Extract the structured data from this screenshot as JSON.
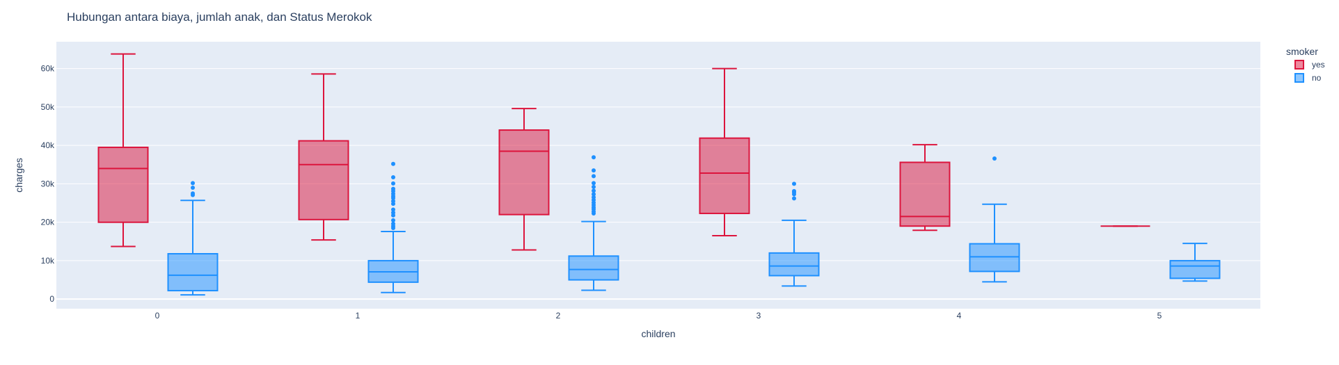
{
  "chart_data": {
    "type": "box",
    "title": "Hubungan antara biaya, jumlah anak, dan  Status Merokok",
    "xlabel": "children",
    "ylabel": "charges",
    "categories": [
      "0",
      "1",
      "2",
      "3",
      "4",
      "5"
    ],
    "yticks": [
      {
        "value": 0,
        "label": "0"
      },
      {
        "value": 10000,
        "label": "10k"
      },
      {
        "value": 20000,
        "label": "20k"
      },
      {
        "value": 30000,
        "label": "30k"
      },
      {
        "value": 40000,
        "label": "40k"
      },
      {
        "value": 50000,
        "label": "50k"
      },
      {
        "value": 60000,
        "label": "60k"
      }
    ],
    "ylim": [
      -2500,
      67000
    ],
    "grid": true,
    "legend": {
      "title": "smoker",
      "position": "top-right"
    },
    "series": [
      {
        "name": "yes",
        "color": "#dc143c",
        "fill": "rgba(220,20,60,0.5)",
        "boxes": [
          {
            "category": "0",
            "min": 13700,
            "q1": 20000,
            "median": 34000,
            "q3": 39500,
            "max": 63800,
            "outliers": []
          },
          {
            "category": "1",
            "min": 15400,
            "q1": 20700,
            "median": 35000,
            "q3": 41200,
            "max": 58600,
            "outliers": []
          },
          {
            "category": "2",
            "min": 12800,
            "q1": 22000,
            "median": 38500,
            "q3": 44000,
            "max": 49600,
            "outliers": []
          },
          {
            "category": "3",
            "min": 16500,
            "q1": 22300,
            "median": 32800,
            "q3": 41900,
            "max": 60000,
            "outliers": []
          },
          {
            "category": "4",
            "min": 17900,
            "q1": 19000,
            "median": 21500,
            "q3": 35600,
            "max": 40200,
            "outliers": []
          },
          {
            "category": "5",
            "min": 19000,
            "q1": 19000,
            "median": 19000,
            "q3": 19000,
            "max": 19000,
            "outliers": []
          }
        ]
      },
      {
        "name": "no",
        "color": "#1e90ff",
        "fill": "rgba(30,144,255,0.5)",
        "boxes": [
          {
            "category": "0",
            "min": 1100,
            "q1": 2200,
            "median": 6200,
            "q3": 11800,
            "max": 25700,
            "outliers": [
              27100,
              27500,
              29000,
              30200
            ]
          },
          {
            "category": "1",
            "min": 1700,
            "q1": 4400,
            "median": 7100,
            "q3": 10000,
            "max": 17600,
            "outliers": [
              18500,
              19000,
              19600,
              20500,
              21800,
              22500,
              23300,
              24800,
              25500,
              26300,
              26800,
              27400,
              28100,
              28700,
              30100,
              31700,
              35200
            ]
          },
          {
            "category": "2",
            "min": 2300,
            "q1": 5000,
            "median": 7700,
            "q3": 11200,
            "max": 20200,
            "outliers": [
              22300,
              22800,
              23400,
              23900,
              24500,
              25100,
              25800,
              26500,
              27300,
              28200,
              29200,
              30200,
              32000,
              33500,
              36900
            ]
          },
          {
            "category": "3",
            "min": 3400,
            "q1": 6100,
            "median": 8600,
            "q3": 12000,
            "max": 20500,
            "outliers": [
              26200,
              27300,
              27800,
              28100,
              30000
            ]
          },
          {
            "category": "4",
            "min": 4500,
            "q1": 7200,
            "median": 11000,
            "q3": 14400,
            "max": 24700,
            "outliers": [
              36600
            ]
          },
          {
            "category": "5",
            "min": 4700,
            "q1": 5400,
            "median": 8600,
            "q3": 10000,
            "max": 14500,
            "outliers": []
          }
        ]
      }
    ]
  }
}
